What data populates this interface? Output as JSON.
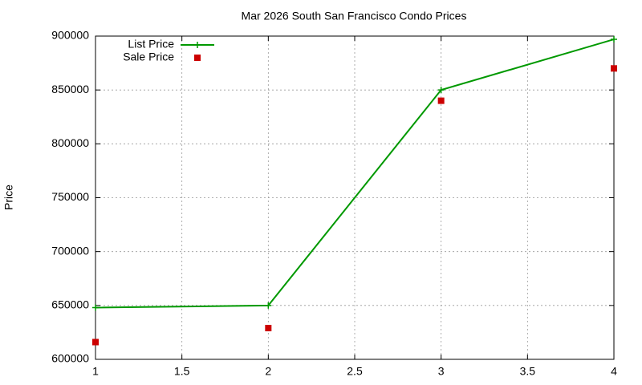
{
  "chart_data": {
    "type": "line",
    "title": "Mar 2026 South San Francisco Condo Prices",
    "y_label": "Price",
    "x": [
      1,
      2,
      3,
      4
    ],
    "series": [
      {
        "name": "List Price",
        "color": "#009900",
        "line": true,
        "marker": "plus",
        "values": [
          648000,
          650000,
          850000,
          897000
        ]
      },
      {
        "name": "Sale Price",
        "color": "#cc0000",
        "line": false,
        "marker": "square",
        "values": [
          616000,
          629000,
          840000,
          870000
        ]
      }
    ],
    "xlim": [
      1,
      4
    ],
    "xticks": [
      1,
      1.5,
      2,
      2.5,
      3,
      3.5,
      4
    ],
    "ylim": [
      600000,
      900000
    ],
    "yticks": [
      600000,
      650000,
      700000,
      750000,
      800000,
      850000,
      900000
    ],
    "grid": true,
    "legend": "top-left"
  }
}
